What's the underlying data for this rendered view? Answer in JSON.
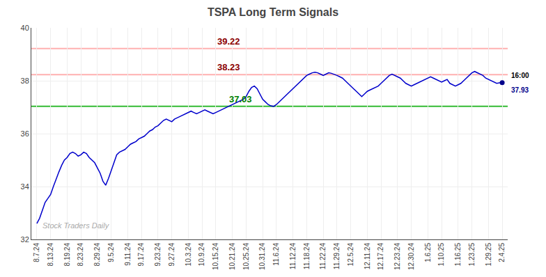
{
  "chart_data": {
    "type": "line",
    "title": "TSPA Long Term Signals",
    "watermark": "Stock Traders Daily",
    "categories": [
      "8.7.24",
      null,
      null,
      null,
      null,
      "8.13.24",
      null,
      null,
      null,
      null,
      null,
      "8.19.24",
      null,
      null,
      null,
      null,
      "8.23.24",
      null,
      null,
      null,
      null,
      null,
      "8.29.24",
      null,
      null,
      null,
      null,
      "9.5.24",
      null,
      null,
      null,
      null,
      null,
      "9.11.24",
      null,
      null,
      null,
      null,
      "9.17.24",
      null,
      null,
      null,
      null,
      null,
      "9.23.24",
      null,
      null,
      null,
      null,
      "9.27.24",
      null,
      null,
      null,
      null,
      null,
      "10.3.24",
      null,
      null,
      null,
      null,
      "10.9.24",
      null,
      null,
      null,
      null,
      "10.15.24",
      null,
      null,
      null,
      null,
      null,
      "10.21.24",
      null,
      null,
      null,
      null,
      "10.25.24",
      null,
      null,
      null,
      null,
      null,
      "10.31.24",
      null,
      null,
      null,
      null,
      "11.6.24",
      null,
      null,
      null,
      null,
      null,
      "11.12.24",
      null,
      null,
      null,
      null,
      "11.18.24",
      null,
      null,
      null,
      null,
      null,
      "11.22.24",
      null,
      null,
      null,
      null,
      "11.29.24",
      null,
      null,
      null,
      null,
      "12.5.24",
      null,
      null,
      null,
      null,
      null,
      "12.11.24",
      null,
      null,
      null,
      null,
      "12.17.24",
      null,
      null,
      null,
      null,
      null,
      "12.23.24",
      null,
      null,
      null,
      null,
      "12.30.24",
      null,
      null,
      null,
      null,
      null,
      "1.6.25",
      null,
      null,
      null,
      null,
      "1.10.25",
      null,
      null,
      null,
      null,
      null,
      "1.16.25",
      null,
      null,
      null,
      null,
      "1.23.25",
      null,
      null,
      null,
      null,
      null,
      "1.29.25",
      null,
      null,
      null,
      null,
      "2.4.25"
    ],
    "values": [
      32.6,
      32.8,
      33.1,
      33.4,
      33.55,
      33.7,
      34.0,
      34.3,
      34.55,
      34.8,
      35.0,
      35.1,
      35.25,
      35.3,
      35.25,
      35.15,
      35.2,
      35.3,
      35.25,
      35.1,
      35.0,
      34.9,
      34.7,
      34.5,
      34.2,
      34.05,
      34.3,
      34.6,
      34.9,
      35.2,
      35.3,
      35.35,
      35.4,
      35.5,
      35.6,
      35.65,
      35.7,
      35.8,
      35.85,
      35.9,
      36.0,
      36.1,
      36.15,
      36.25,
      36.3,
      36.4,
      36.5,
      36.55,
      36.5,
      36.45,
      36.55,
      36.6,
      36.65,
      36.7,
      36.75,
      36.8,
      36.85,
      36.8,
      36.75,
      36.8,
      36.85,
      36.9,
      36.85,
      36.8,
      36.75,
      36.8,
      36.85,
      36.9,
      36.95,
      37.0,
      37.05,
      37.1,
      37.15,
      37.2,
      37.25,
      37.3,
      37.4,
      37.6,
      37.75,
      37.8,
      37.7,
      37.5,
      37.3,
      37.2,
      37.1,
      37.05,
      37.03,
      37.1,
      37.2,
      37.3,
      37.4,
      37.5,
      37.6,
      37.7,
      37.8,
      37.9,
      38.0,
      38.1,
      38.2,
      38.25,
      38.3,
      38.32,
      38.3,
      38.25,
      38.2,
      38.25,
      38.3,
      38.28,
      38.25,
      38.2,
      38.15,
      38.1,
      38.0,
      37.9,
      37.8,
      37.7,
      37.6,
      37.5,
      37.4,
      37.5,
      37.6,
      37.65,
      37.7,
      37.75,
      37.8,
      37.9,
      38.0,
      38.1,
      38.2,
      38.25,
      38.2,
      38.15,
      38.1,
      38.0,
      37.9,
      37.85,
      37.8,
      37.85,
      37.9,
      37.95,
      38.0,
      38.05,
      38.1,
      38.15,
      38.1,
      38.05,
      38.0,
      37.95,
      38.0,
      38.05,
      37.9,
      37.85,
      37.8,
      37.85,
      37.9,
      38.0,
      38.1,
      38.2,
      38.3,
      38.35,
      38.3,
      38.25,
      38.2,
      38.1,
      38.05,
      38.0,
      37.95,
      37.9,
      37.92,
      37.93
    ],
    "color": "#0000CC",
    "ylim": [
      32,
      40
    ],
    "yticks": [
      32,
      34,
      36,
      38,
      40
    ],
    "grid": true,
    "hlines": [
      {
        "value": 37.03,
        "label": "37.03",
        "color": "#33BB33",
        "label_color": "#008000"
      },
      {
        "value": 38.23,
        "label": "38.23",
        "color": "#FFB0B0",
        "label_color": "#8B0000"
      },
      {
        "value": 39.22,
        "label": "39.22",
        "color": "#FFB0B0",
        "label_color": "#8B0000"
      }
    ],
    "end_marker": {
      "label": "16:00",
      "value": 37.93,
      "color": "#00008B"
    }
  }
}
